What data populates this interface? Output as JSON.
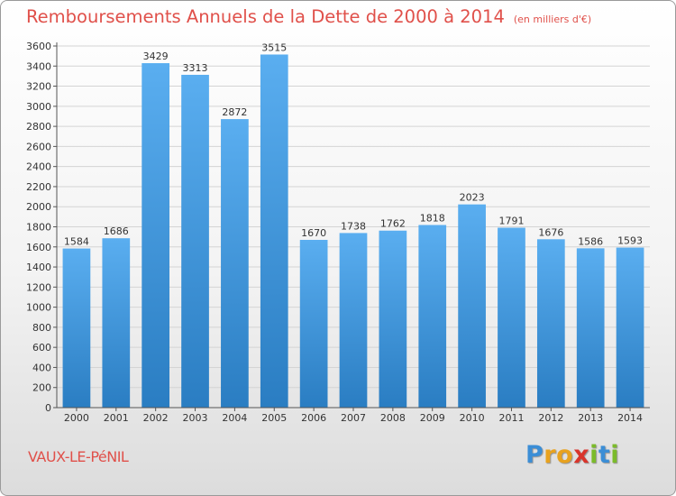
{
  "header": {
    "title": "Remboursements Annuels de la Dette de 2000 à 2014",
    "subtitle": "(en milliers d'€)"
  },
  "footer": {
    "place": "VAUX-LE-PéNIL",
    "logo_letters": [
      "P",
      "r",
      "o",
      "x",
      "i",
      "t",
      "i"
    ],
    "logo_colors": [
      "#3b8ed6",
      "#e8a21e",
      "#e8a21e",
      "#d9342b",
      "#7bbb2a",
      "#3b8ed6",
      "#7bbb2a"
    ]
  },
  "chart_data": {
    "type": "bar",
    "categories": [
      "2000",
      "2001",
      "2002",
      "2003",
      "2004",
      "2005",
      "2006",
      "2007",
      "2008",
      "2009",
      "2010",
      "2011",
      "2012",
      "2013",
      "2014"
    ],
    "values": [
      1584,
      1686,
      3429,
      3313,
      2872,
      3515,
      1670,
      1738,
      1762,
      1818,
      2023,
      1791,
      1676,
      1586,
      1593
    ],
    "title": "Remboursements Annuels de la Dette de 2000 à 2014",
    "subtitle": "(en milliers d'€)",
    "ylim": [
      0,
      3600
    ],
    "ytick_step": 200,
    "grid": true,
    "bar_color_light": "#5aaef0",
    "bar_color_dark": "#2a7dc2",
    "grid_color": "#d4d4d4"
  }
}
